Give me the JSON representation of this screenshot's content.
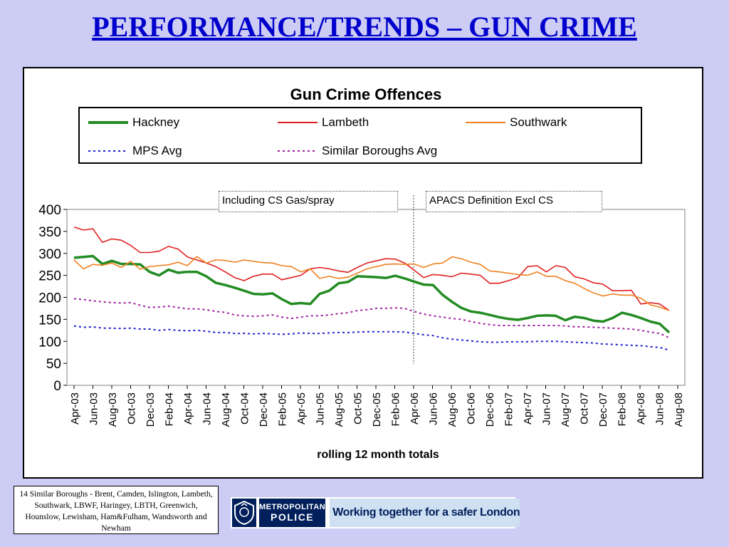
{
  "slide": {
    "title": "PERFORMANCE/TRENDS – GUN CRIME"
  },
  "footnote": "14 Similar Boroughs - Brent, Camden, Islington, Lambeth, Southwark, LBWF, Haringey, LBTH, Greenwich, Hounslow, Lewisham, Ham&Fulham, Wandsworth and Newham",
  "logo": {
    "line1": "METROPOLITAN",
    "line2": "POLICE",
    "tagline": "Working together for a safer London"
  },
  "colors": {
    "title": "#0000cc",
    "background": "#ccccf5",
    "hackney": "#228b22",
    "lambeth": "#e02020",
    "southwark": "#f08020",
    "mps": "#2020d0",
    "similar": "#a020a0"
  },
  "chart_data": {
    "type": "line",
    "title": "Gun Crime Offences",
    "xlabel": "rolling 12 month totals",
    "ylabel": "",
    "ylim": [
      0,
      400
    ],
    "yticks": [
      0,
      50,
      100,
      150,
      200,
      250,
      300,
      350,
      400
    ],
    "grid": false,
    "legend_position": "top",
    "x_start": "Apr-03",
    "x_end": "Aug-08",
    "tick_labels": [
      "Apr-03",
      "Jun-03",
      "Aug-03",
      "Oct-03",
      "Dec-03",
      "Feb-04",
      "Apr-04",
      "Jun-04",
      "Aug-04",
      "Oct-04",
      "Dec-04",
      "Feb-05",
      "Apr-05",
      "Jun-05",
      "Aug-05",
      "Oct-05",
      "Dec-05",
      "Feb-06",
      "Apr-06",
      "Jun-06",
      "Aug-06",
      "Oct-06",
      "Dec-06",
      "Feb-07",
      "Apr-07",
      "Jun-07",
      "Aug-07",
      "Oct-07",
      "Dec-07",
      "Feb-08",
      "Apr-08",
      "Jun-08",
      "Aug-08"
    ],
    "annotations": [
      {
        "text": "Including CS Gas/spray"
      },
      {
        "text": "APACS Definition Excl CS"
      }
    ],
    "divider_at": "Apr-06",
    "series": [
      {
        "name": "Hackney",
        "color": "#228b22",
        "style": "solid-thick",
        "values": [
          290,
          292,
          294,
          276,
          283,
          276,
          276,
          275,
          258,
          250,
          263,
          256,
          258,
          258,
          248,
          233,
          228,
          222,
          215,
          208,
          207,
          209,
          196,
          185,
          187,
          185,
          208,
          215,
          232,
          235,
          248,
          247,
          246,
          244,
          249,
          243,
          236,
          229,
          228,
          206,
          190,
          176,
          168,
          165,
          160,
          155,
          151,
          149,
          153,
          158,
          159,
          158,
          148,
          156,
          153,
          147,
          145,
          153,
          165,
          160,
          153,
          145,
          140,
          120
        ]
      },
      {
        "name": "Lambeth",
        "color": "#e02020",
        "style": "solid",
        "values": [
          360,
          353,
          356,
          325,
          333,
          330,
          318,
          302,
          302,
          305,
          316,
          310,
          292,
          285,
          278,
          270,
          258,
          245,
          238,
          248,
          253,
          253,
          240,
          245,
          250,
          265,
          268,
          265,
          260,
          257,
          268,
          278,
          283,
          288,
          287,
          278,
          262,
          245,
          252,
          250,
          247,
          255,
          253,
          250,
          232,
          232,
          238,
          245,
          270,
          272,
          258,
          272,
          268,
          247,
          242,
          233,
          230,
          215,
          215,
          216,
          185,
          188,
          185,
          170
        ]
      },
      {
        "name": "Southwark",
        "color": "#f08020",
        "style": "solid",
        "values": [
          285,
          265,
          275,
          273,
          278,
          268,
          282,
          264,
          270,
          272,
          274,
          280,
          272,
          293,
          278,
          285,
          284,
          280,
          285,
          282,
          279,
          278,
          272,
          270,
          258,
          265,
          243,
          248,
          243,
          246,
          255,
          265,
          270,
          275,
          276,
          275,
          276,
          268,
          276,
          278,
          292,
          288,
          280,
          275,
          260,
          258,
          255,
          252,
          250,
          258,
          248,
          248,
          238,
          232,
          220,
          210,
          203,
          208,
          205,
          205,
          198,
          183,
          178,
          170
        ]
      },
      {
        "name": "MPS Avg",
        "color": "#2020d0",
        "style": "dashed",
        "values": [
          135,
          132,
          133,
          130,
          130,
          129,
          130,
          128,
          128,
          125,
          127,
          125,
          124,
          125,
          123,
          120,
          120,
          118,
          118,
          117,
          118,
          117,
          116,
          117,
          119,
          118,
          118,
          119,
          120,
          120,
          121,
          122,
          122,
          122,
          122,
          121,
          118,
          115,
          113,
          108,
          105,
          103,
          101,
          99,
          98,
          98,
          99,
          99,
          99,
          100,
          100,
          100,
          99,
          98,
          97,
          96,
          94,
          93,
          92,
          91,
          90,
          88,
          86,
          80
        ]
      },
      {
        "name": "Similar Boroughs Avg",
        "color": "#a020a0",
        "style": "dashed",
        "values": [
          197,
          195,
          192,
          190,
          188,
          187,
          188,
          182,
          177,
          178,
          180,
          177,
          174,
          174,
          172,
          168,
          166,
          160,
          158,
          157,
          158,
          160,
          155,
          152,
          155,
          158,
          158,
          160,
          163,
          165,
          170,
          172,
          175,
          175,
          176,
          175,
          168,
          162,
          158,
          155,
          152,
          150,
          145,
          141,
          138,
          136,
          136,
          136,
          136,
          136,
          136,
          136,
          135,
          133,
          133,
          132,
          131,
          130,
          129,
          128,
          125,
          121,
          118,
          108
        ]
      }
    ]
  }
}
